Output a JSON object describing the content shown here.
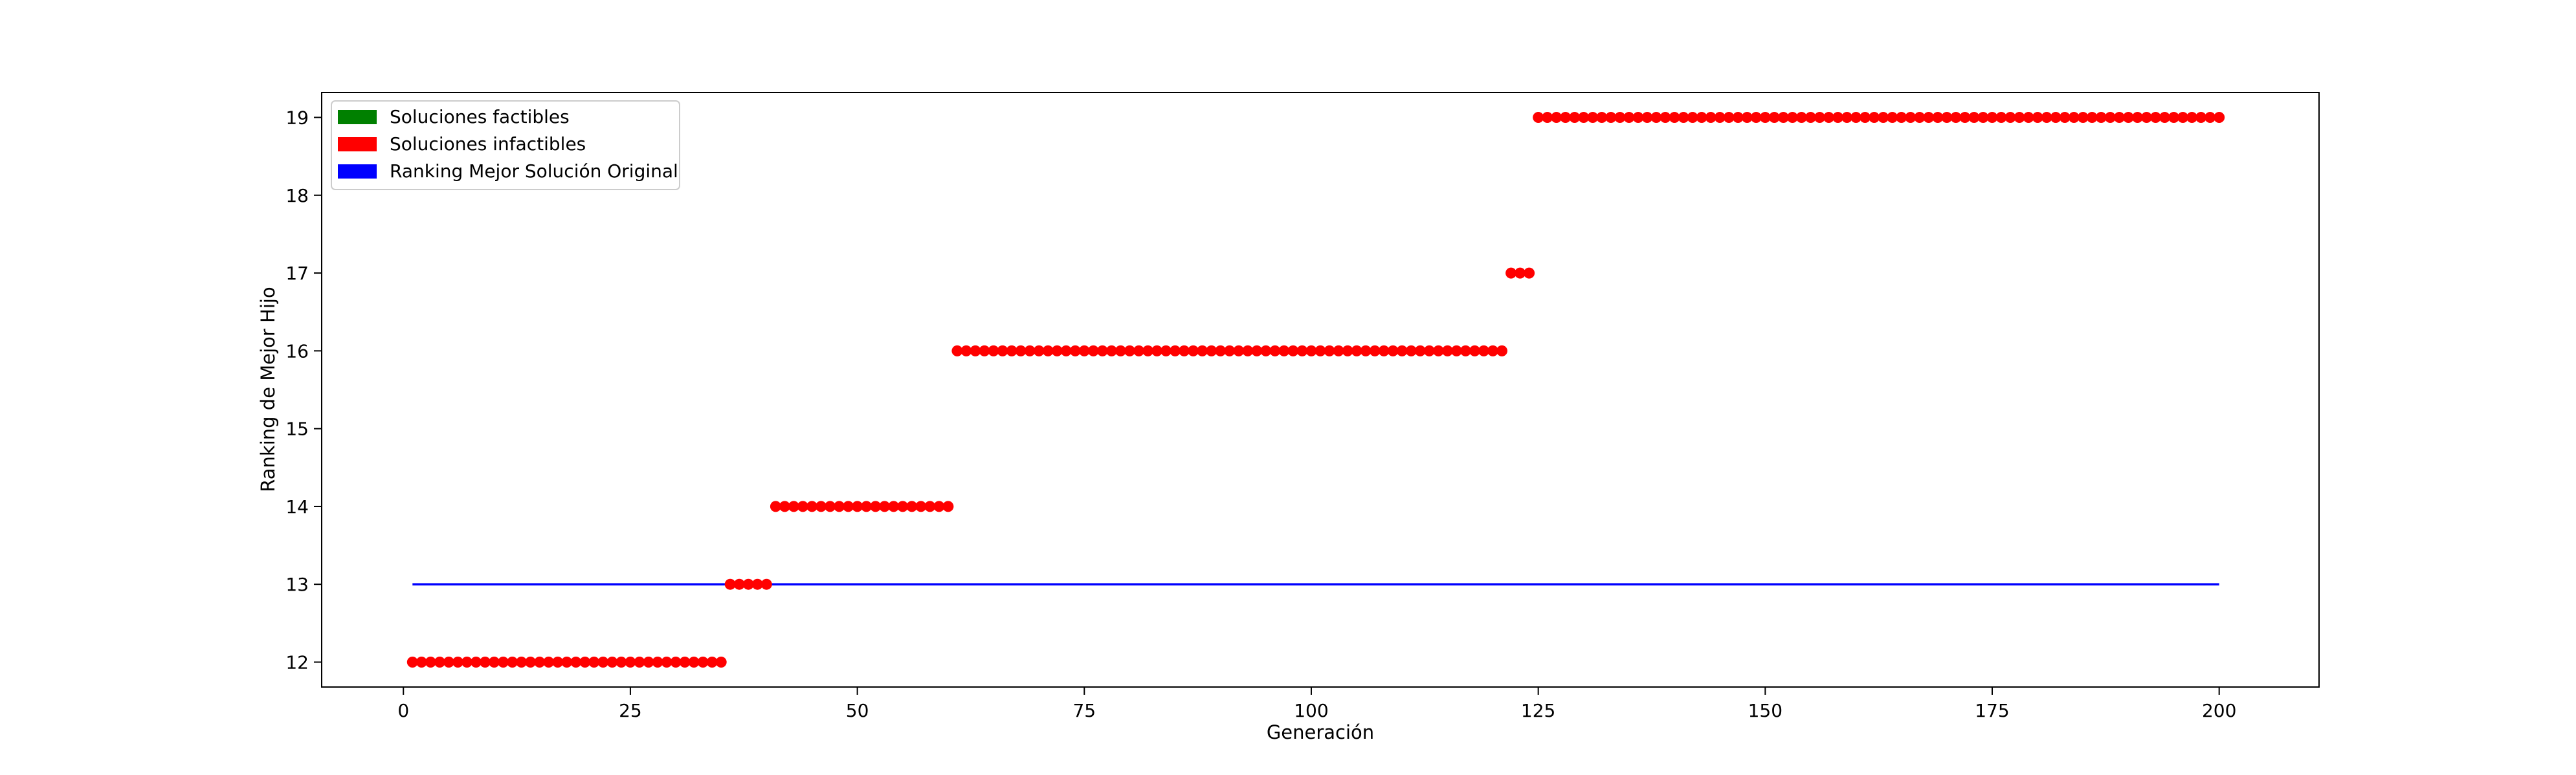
{
  "chart_data": {
    "type": "scatter",
    "title": "",
    "xlabel": "Generación",
    "ylabel": "Ranking de Mejor Hijo",
    "xlim": [
      -9,
      211
    ],
    "ylim": [
      11.68,
      19.32
    ],
    "xticks": [
      0,
      25,
      50,
      75,
      100,
      125,
      150,
      175,
      200
    ],
    "yticks": [
      12,
      13,
      14,
      15,
      16,
      17,
      18,
      19
    ],
    "grid": false,
    "legend_position": "top-left",
    "legend": [
      {
        "label": "Soluciones factibles",
        "color": "#008000"
      },
      {
        "label": "Soluciones infactibles",
        "color": "#ff0000"
      },
      {
        "label": "Ranking Mejor Solución Original",
        "color": "#0000ff"
      }
    ],
    "series": [
      {
        "kind": "points",
        "color": "#ff0000",
        "segments": [
          {
            "x_from": 1,
            "x_to": 35,
            "y": 12
          },
          {
            "x_from": 36,
            "x_to": 40,
            "y": 13
          },
          {
            "x_from": 41,
            "x_to": 60,
            "y": 14
          },
          {
            "x_from": 61,
            "x_to": 121,
            "y": 16
          },
          {
            "x_from": 122,
            "x_to": 124,
            "y": 17
          },
          {
            "x_from": 125,
            "x_to": 200,
            "y": 19
          }
        ]
      },
      {
        "kind": "line",
        "color": "#0000ff",
        "points": [
          [
            1,
            13
          ],
          [
            200,
            13
          ]
        ]
      }
    ]
  }
}
